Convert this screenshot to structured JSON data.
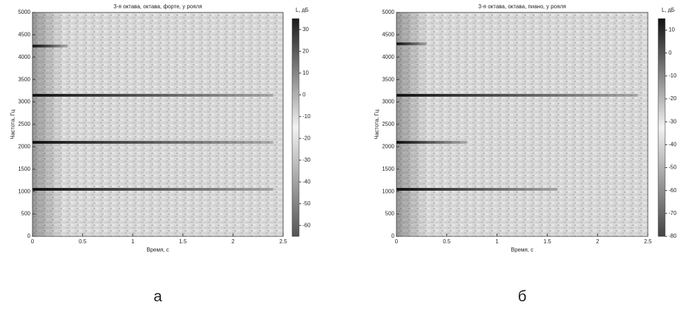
{
  "chart_data": [
    {
      "type": "spectrogram",
      "title": "3-я октава, октава, форте, у рояля",
      "xlabel": "Время, с",
      "ylabel": "Частота, Гц",
      "colorbar_label": "L, дБ",
      "panel_label": "а",
      "xlim": [
        0,
        2.5
      ],
      "xticks": [
        0,
        0.5,
        1,
        1.5,
        2,
        2.5
      ],
      "ylim": [
        0,
        5000
      ],
      "yticks": [
        0,
        500,
        1000,
        1500,
        2000,
        2500,
        3000,
        3500,
        4000,
        4500,
        5000
      ],
      "clim": [
        -65,
        35
      ],
      "cticks": [
        30,
        20,
        10,
        0,
        -10,
        -20,
        -30,
        -40,
        -50,
        -60
      ],
      "colormap": [
        "#555555",
        "#f2f2f2",
        "#1a1a1a"
      ],
      "color": "#111111",
      "harmonics": {
        "freq": [
          1050,
          2100,
          3150,
          4250
        ],
        "end": [
          2.4,
          2.4,
          2.4,
          0.35
        ]
      }
    },
    {
      "type": "spectrogram",
      "title": "3-я октава, октава, пиано, у рояля",
      "xlabel": "Время, с",
      "ylabel": "Частота, Гц",
      "colorbar_label": "L, дБ",
      "panel_label": "б",
      "xlim": [
        0,
        2.5
      ],
      "xticks": [
        0,
        0.5,
        1,
        1.5,
        2,
        2.5
      ],
      "ylim": [
        0,
        5000
      ],
      "yticks": [
        0,
        500,
        1000,
        1500,
        2000,
        2500,
        3000,
        3500,
        4000,
        4500,
        5000
      ],
      "clim": [
        -80,
        15
      ],
      "cticks": [
        10,
        0,
        -10,
        -20,
        -30,
        -40,
        -50,
        -60,
        -70,
        -80
      ],
      "colormap": [
        "#444444",
        "#f2f2f2",
        "#111111"
      ],
      "color": "#111111",
      "harmonics": {
        "freq": [
          1050,
          2100,
          3150,
          4300
        ],
        "end": [
          1.6,
          0.7,
          2.4,
          0.3
        ]
      }
    }
  ]
}
